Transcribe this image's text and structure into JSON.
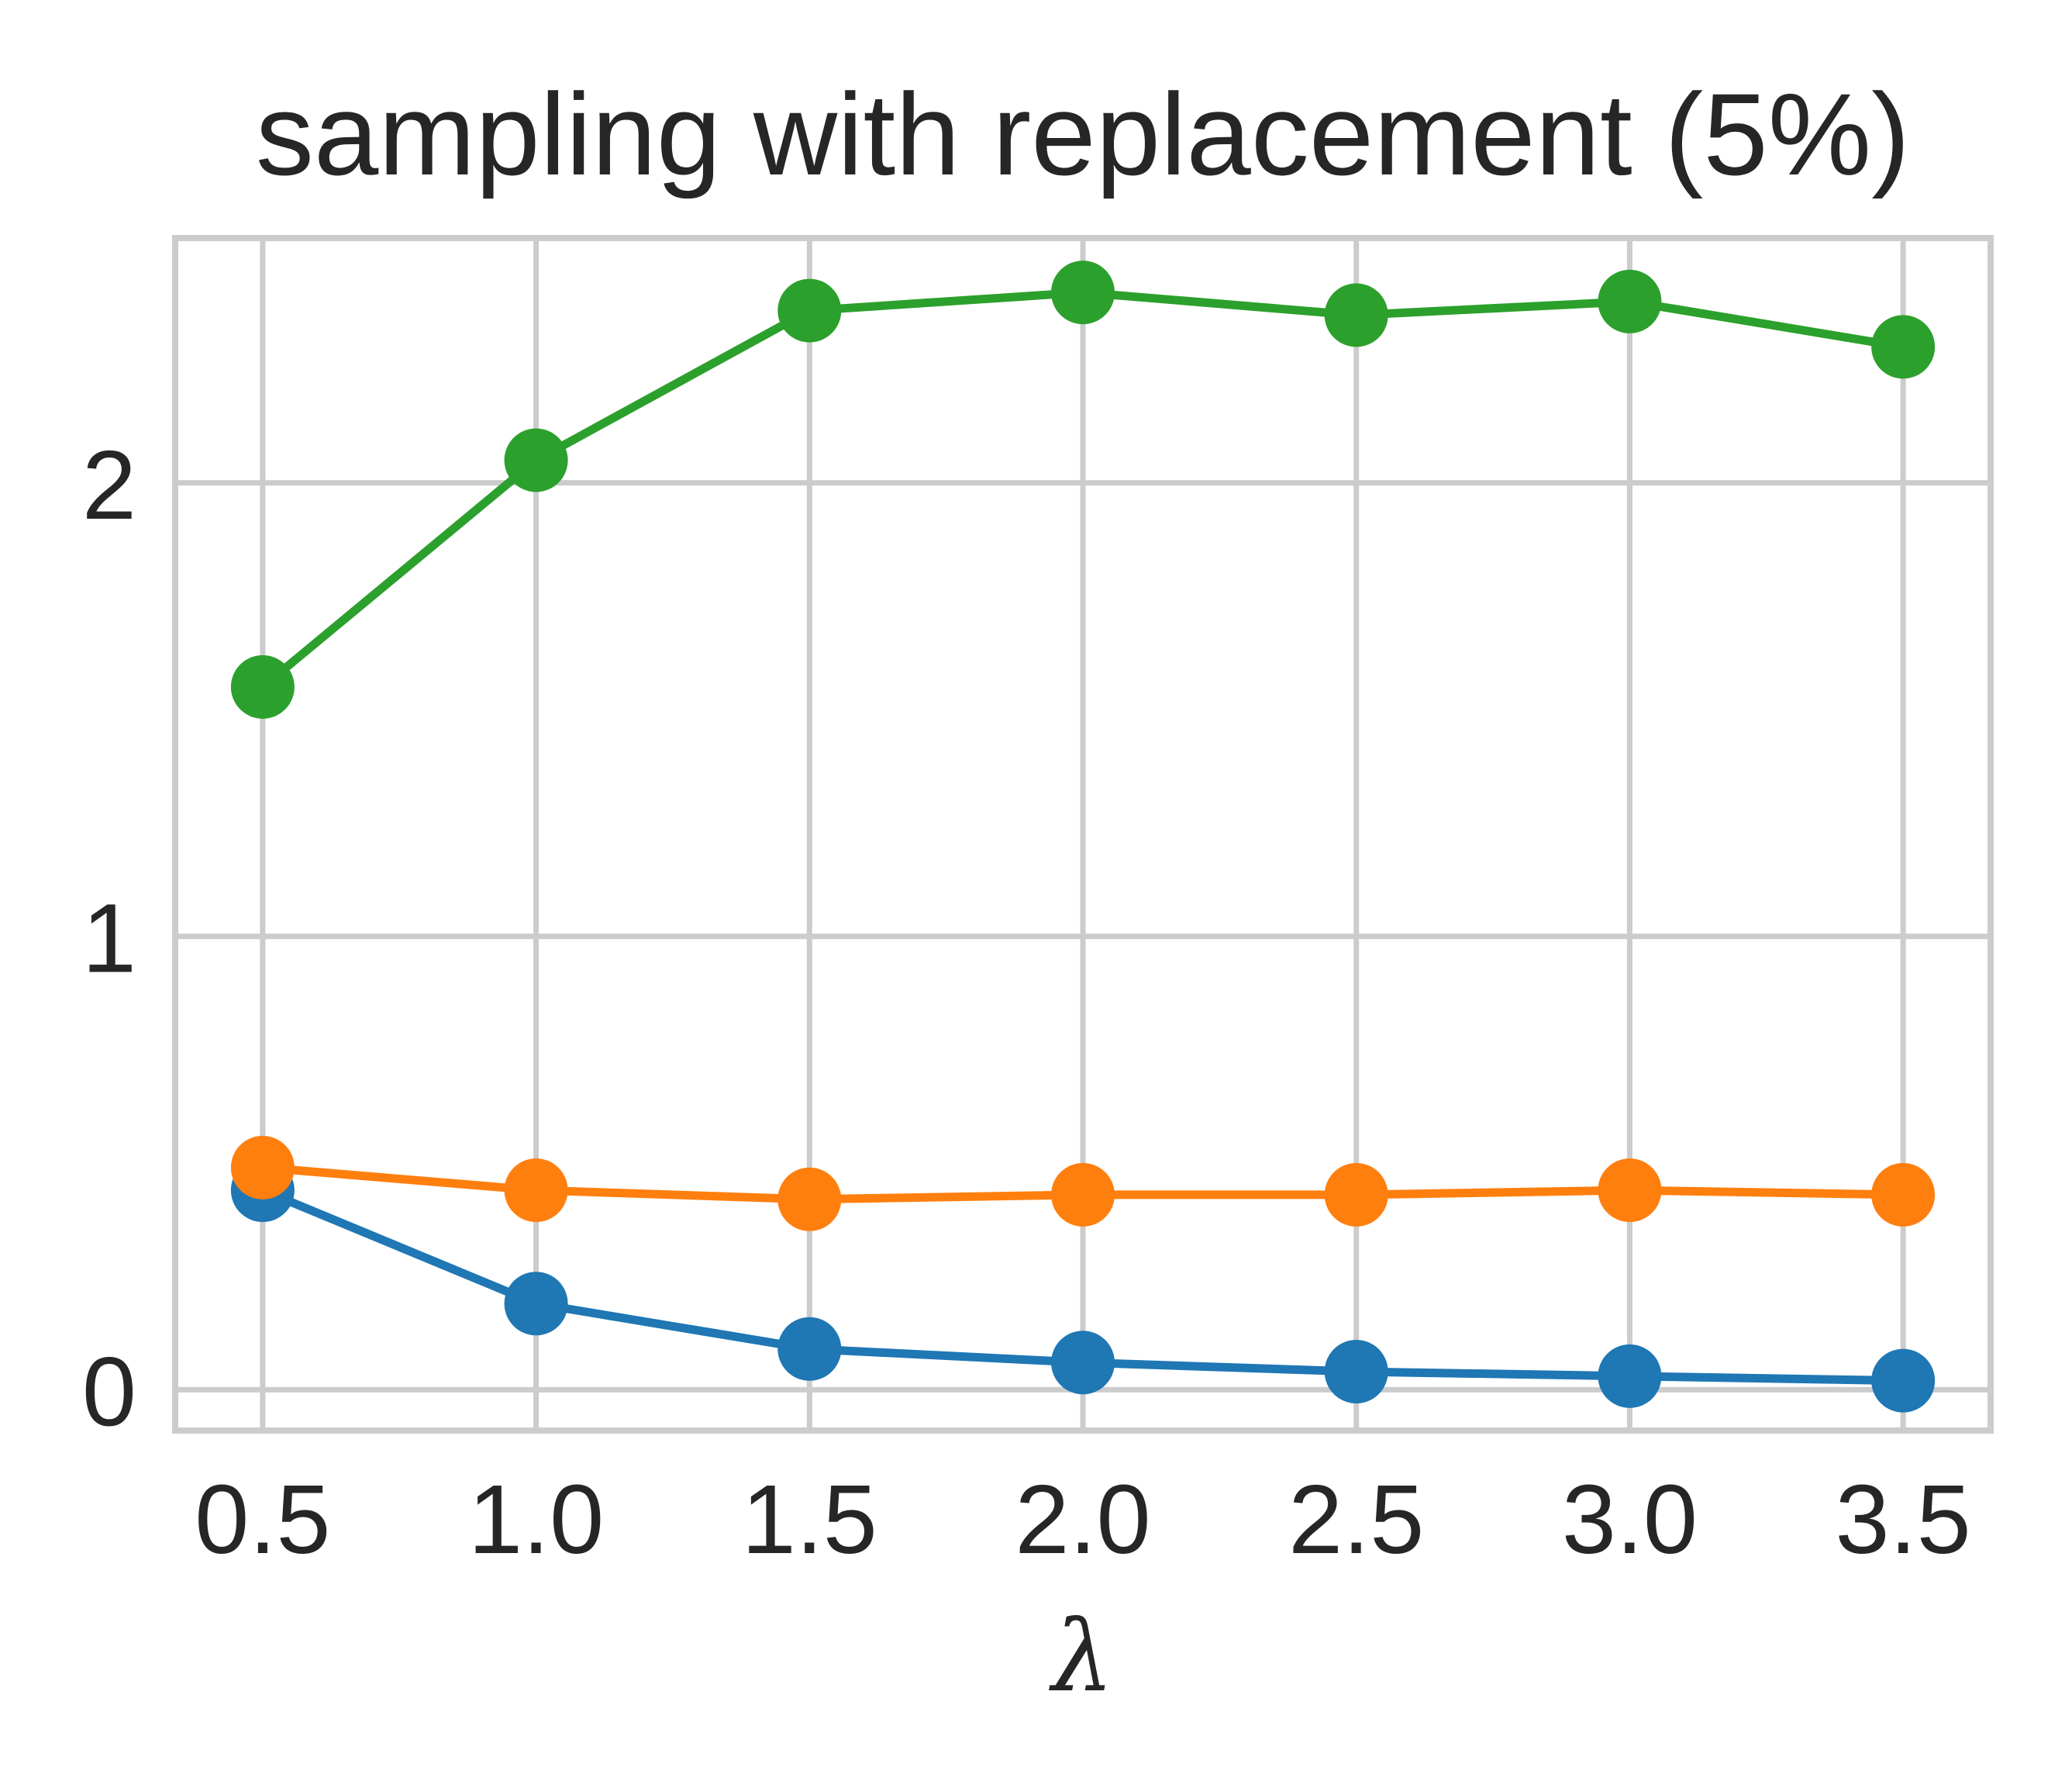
{
  "chart_data": {
    "type": "line",
    "title": "sampling with replacement (5%)",
    "xlabel": "λ",
    "ylabel": "",
    "x": [
      0.5,
      1.0,
      1.5,
      2.0,
      2.5,
      3.0,
      3.5
    ],
    "x_tick_labels": [
      "0.5",
      "1.0",
      "1.5",
      "2.0",
      "2.5",
      "3.0",
      "3.5"
    ],
    "y_ticks": [
      0,
      1,
      2
    ],
    "y_tick_labels": [
      "0",
      "1",
      "2"
    ],
    "xlim": [
      0.34,
      3.66
    ],
    "ylim": [
      -0.09,
      2.54
    ],
    "grid": true,
    "legend": false,
    "series": [
      {
        "color": "#1f77b4",
        "marker": "circle",
        "values": [
          0.44,
          0.19,
          0.09,
          0.06,
          0.04,
          0.03,
          0.02
        ]
      },
      {
        "color": "#ff7f0e",
        "marker": "circle",
        "values": [
          0.49,
          0.44,
          0.42,
          0.43,
          0.43,
          0.44,
          0.43
        ]
      },
      {
        "color": "#2ca02c",
        "marker": "circle",
        "values": [
          1.55,
          2.05,
          2.38,
          2.42,
          2.37,
          2.4,
          2.3
        ]
      }
    ]
  }
}
